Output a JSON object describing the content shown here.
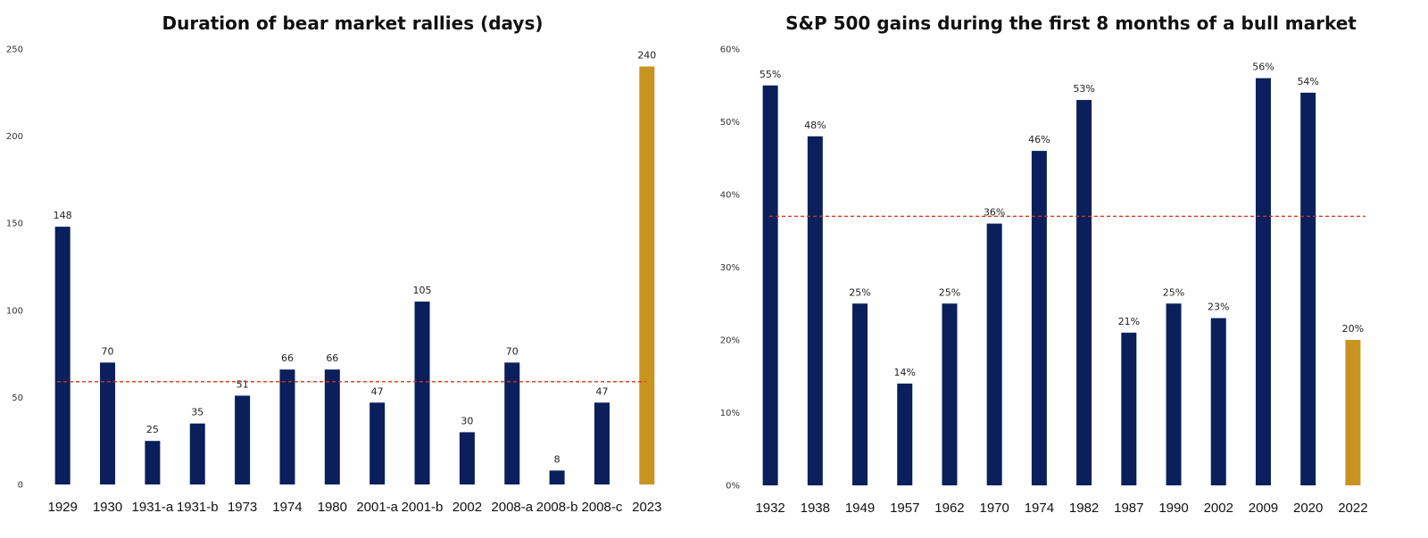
{
  "colors": {
    "bar": "#0a1f5c",
    "highlight": "#c8941f",
    "average_line": "#d4351c"
  },
  "chart_data": [
    {
      "type": "bar",
      "title": "Duration of bear market rallies (days)",
      "categories": [
        "1929",
        "1930",
        "1931-a",
        "1931-b",
        "1973",
        "1974",
        "1980",
        "2001-a",
        "2001-b",
        "2002",
        "2008-a",
        "2008-b",
        "2008-c",
        "2023"
      ],
      "values": [
        148,
        70,
        25,
        35,
        51,
        66,
        66,
        47,
        105,
        30,
        70,
        8,
        47,
        240
      ],
      "data_labels": [
        "148",
        "70",
        "25",
        "35",
        "51",
        "66",
        "66",
        "47",
        "105",
        "30",
        "70",
        "8",
        "47",
        "240"
      ],
      "highlight_category": "2023",
      "ylim": [
        0,
        250
      ],
      "yticks": [
        0,
        50,
        100,
        150,
        200,
        250
      ],
      "ytick_labels": [
        "0",
        "50",
        "100",
        "150",
        "200",
        "250"
      ],
      "average_line": 59,
      "grid": false,
      "legend": "none"
    },
    {
      "type": "bar",
      "title": "S&P 500 gains during the first 8 months of a bull market",
      "categories": [
        "1932",
        "1938",
        "1949",
        "1957",
        "1962",
        "1970",
        "1974",
        "1982",
        "1987",
        "1990",
        "2002",
        "2009",
        "2020",
        "2022"
      ],
      "values": [
        55,
        48,
        25,
        14,
        25,
        36,
        46,
        53,
        21,
        25,
        23,
        56,
        54,
        20
      ],
      "data_labels": [
        "55%",
        "48%",
        "25%",
        "14%",
        "25%",
        "36%",
        "46%",
        "53%",
        "21%",
        "25%",
        "23%",
        "56%",
        "54%",
        "20%"
      ],
      "highlight_category": "2022",
      "ylim": [
        0,
        60
      ],
      "yticks": [
        0,
        10,
        20,
        30,
        40,
        50,
        60
      ],
      "ytick_labels": [
        "0%",
        "10%",
        "20%",
        "30%",
        "40%",
        "50%",
        "60%"
      ],
      "average_line": 37,
      "grid": false,
      "legend": "none"
    }
  ]
}
